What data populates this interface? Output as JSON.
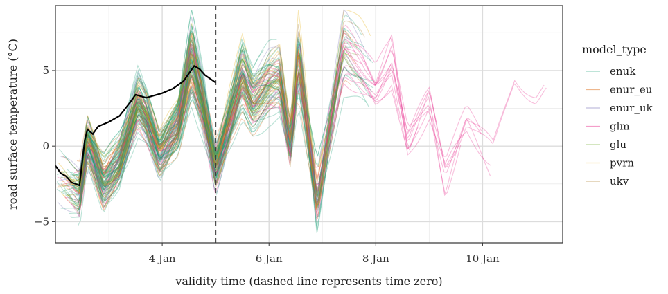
{
  "chart_data": {
    "type": "line",
    "title": "",
    "xlabel": "validity time (dashed line represents time zero)",
    "ylabel": "road surface temperature (°C)",
    "x_ticks": [
      "4 Jan",
      "6 Jan",
      "8 Jan",
      "10 Jan"
    ],
    "x_tick_values": [
      4,
      6,
      8,
      10
    ],
    "y_ticks": [
      -5,
      0,
      5
    ],
    "xlim": [
      2.0,
      11.5
    ],
    "ylim": [
      -6.4,
      9.3
    ],
    "time_zero": 5.0,
    "grid": true,
    "legend_title": "model_type",
    "legend_position": "right",
    "series": [
      {
        "name": "enuk",
        "color": "#1b9e77"
      },
      {
        "name": "enur_eu",
        "color": "#d95f02"
      },
      {
        "name": "enur_uk",
        "color": "#7570b3"
      },
      {
        "name": "glm",
        "color": "#e7298a"
      },
      {
        "name": "glu",
        "color": "#66a61e"
      },
      {
        "name": "pvrn",
        "color": "#e6ab02"
      },
      {
        "name": "ukv",
        "color": "#a6761d"
      }
    ],
    "observed": {
      "color": "#000000",
      "x": [
        2.0,
        2.1,
        2.2,
        2.3,
        2.45,
        2.55,
        2.6,
        2.7,
        2.8,
        3.0,
        3.2,
        3.4,
        3.5,
        3.6,
        3.7,
        3.8,
        4.0,
        4.2,
        4.4,
        4.5,
        4.6,
        4.7,
        4.8,
        5.0
      ],
      "values": [
        -1.3,
        -1.8,
        -2.0,
        -2.4,
        -2.6,
        0.4,
        1.1,
        0.8,
        1.3,
        1.6,
        2.0,
        2.9,
        3.4,
        3.3,
        3.2,
        3.3,
        3.5,
        3.8,
        4.3,
        4.8,
        5.3,
        5.1,
        4.7,
        4.2
      ]
    }
  }
}
